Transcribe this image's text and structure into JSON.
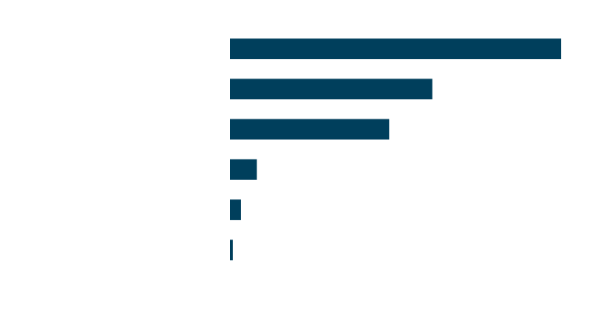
{
  "chart_data": {
    "type": "bar",
    "orientation": "horizontal",
    "categories": [
      null,
      null,
      null,
      null,
      null,
      null
    ],
    "values": [
      100,
      61.1,
      48.1,
      8.1,
      3.3,
      0.9
    ],
    "color": "#003f5c",
    "xlim": [
      0,
      100
    ]
  }
}
